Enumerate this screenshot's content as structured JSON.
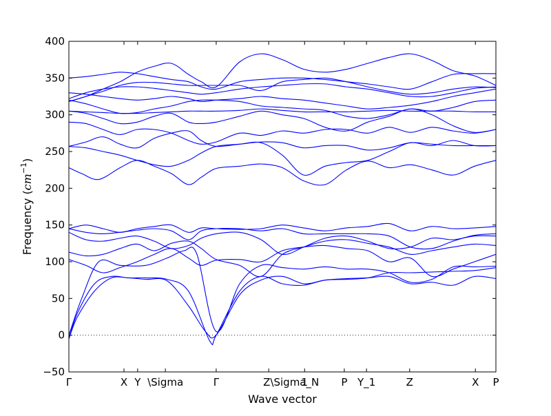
{
  "chart_data": {
    "type": "line",
    "title": "",
    "xlabel": "Wave vector",
    "ylabel_main": "Frequency (",
    "ylabel_unit": "cm",
    "ylabel_exp": "−1",
    "ylabel_close": ")",
    "ylim": [
      -50,
      400
    ],
    "xlim": [
      0,
      1
    ],
    "yticks": [
      -50,
      0,
      50,
      100,
      150,
      200,
      250,
      300,
      350,
      400
    ],
    "ytick_labels": [
      "−50",
      "0",
      "50",
      "100",
      "150",
      "200",
      "250",
      "300",
      "350",
      "400"
    ],
    "xticks": [
      {
        "label": "Γ",
        "pos": 0.0
      },
      {
        "label": "X",
        "pos": 0.129
      },
      {
        "label": "Y",
        "pos": 0.161
      },
      {
        "label": "\\Sigma",
        "pos": 0.226
      },
      {
        "label": "Γ",
        "pos": 0.345
      },
      {
        "label": "Z\\Sigma_N",
        "pos": 0.468
      },
      {
        "label": "1",
        "pos": 0.552
      },
      {
        "label": "P",
        "pos": 0.645
      },
      {
        "label": "Y_1",
        "pos": 0.697
      },
      {
        "label": "Z",
        "pos": 0.798
      },
      {
        "label": "X",
        "pos": 0.952
      },
      {
        "label": "P",
        "pos": 1.0
      }
    ],
    "zero_line": true,
    "line_color": "#0000ff",
    "series": [
      {
        "x": [
          0,
          0.02,
          0.06,
          0.1,
          0.14,
          0.18,
          0.23,
          0.28,
          0.32,
          0.345,
          0.4,
          0.45,
          0.5,
          0.55,
          0.6,
          0.65,
          0.7,
          0.75,
          0.8,
          0.85,
          0.9,
          0.95,
          1.0
        ],
        "y": [
          -5,
          25,
          60,
          78,
          78,
          76,
          74,
          40,
          5,
          0,
          55,
          75,
          80,
          70,
          75,
          77,
          78,
          80,
          70,
          72,
          68,
          80,
          77
        ]
      },
      {
        "x": [
          0,
          0.02,
          0.06,
          0.1,
          0.14,
          0.18,
          0.23,
          0.28,
          0.33,
          0.345,
          0.4,
          0.45,
          0.5,
          0.55,
          0.6,
          0.65,
          0.7,
          0.75,
          0.8,
          0.85,
          0.9,
          0.95,
          1.0
        ],
        "y": [
          -5,
          30,
          70,
          80,
          78,
          78,
          76,
          60,
          -8,
          0,
          60,
          80,
          70,
          68,
          75,
          76,
          78,
          85,
          85,
          86,
          87,
          88,
          92
        ]
      },
      {
        "x": [
          0,
          0.03,
          0.07,
          0.12,
          0.18,
          0.23,
          0.27,
          0.3,
          0.345,
          0.4,
          0.45,
          0.5,
          0.55,
          0.6,
          0.65,
          0.7,
          0.75,
          0.8,
          0.85,
          0.9,
          0.95,
          1.0
        ],
        "y": [
          0,
          50,
          100,
          95,
          95,
          105,
          115,
          110,
          5,
          70,
          95,
          92,
          90,
          93,
          90,
          90,
          85,
          72,
          76,
          93,
          93,
          94
        ]
      },
      {
        "x": [
          0,
          0.04,
          0.08,
          0.12,
          0.16,
          0.2,
          0.24,
          0.28,
          0.31,
          0.345,
          0.4,
          0.45,
          0.5,
          0.55,
          0.6,
          0.65,
          0.7,
          0.75,
          0.8,
          0.85,
          0.9,
          0.95,
          1.0
        ],
        "y": [
          103,
          95,
          85,
          92,
          100,
          110,
          118,
          105,
          95,
          102,
          103,
          100,
          115,
          120,
          122,
          118,
          115,
          100,
          105,
          80,
          90,
          100,
          110
        ]
      },
      {
        "x": [
          0,
          0.04,
          0.08,
          0.12,
          0.16,
          0.2,
          0.24,
          0.28,
          0.31,
          0.345,
          0.4,
          0.45,
          0.5,
          0.55,
          0.6,
          0.65,
          0.7,
          0.75,
          0.8,
          0.85,
          0.9,
          0.95,
          1.0
        ],
        "y": [
          113,
          108,
          110,
          118,
          124,
          115,
          125,
          128,
          118,
          103,
          95,
          80,
          110,
          120,
          128,
          130,
          125,
          120,
          110,
          115,
          120,
          124,
          122
        ]
      },
      {
        "x": [
          0,
          0.04,
          0.08,
          0.12,
          0.16,
          0.2,
          0.24,
          0.28,
          0.31,
          0.345,
          0.4,
          0.45,
          0.5,
          0.55,
          0.6,
          0.65,
          0.7,
          0.75,
          0.8,
          0.85,
          0.9,
          0.95,
          1.0
        ],
        "y": [
          140,
          130,
          128,
          132,
          135,
          128,
          118,
          122,
          132,
          138,
          140,
          130,
          110,
          120,
          132,
          135,
          128,
          118,
          120,
          132,
          130,
          135,
          135
        ]
      },
      {
        "x": [
          0,
          0.04,
          0.08,
          0.12,
          0.16,
          0.2,
          0.24,
          0.28,
          0.31,
          0.345,
          0.4,
          0.45,
          0.5,
          0.55,
          0.6,
          0.65,
          0.7,
          0.75,
          0.8,
          0.85,
          0.9,
          0.95,
          1.0
        ],
        "y": [
          145,
          140,
          138,
          140,
          143,
          145,
          142,
          130,
          142,
          145,
          145,
          142,
          145,
          138,
          138,
          138,
          138,
          135,
          120,
          118,
          128,
          136,
          138
        ]
      },
      {
        "x": [
          0,
          0.04,
          0.08,
          0.12,
          0.16,
          0.2,
          0.24,
          0.28,
          0.31,
          0.345,
          0.4,
          0.45,
          0.5,
          0.55,
          0.6,
          0.65,
          0.7,
          0.75,
          0.8,
          0.85,
          0.9,
          0.95,
          1.0
        ],
        "y": [
          145,
          150,
          145,
          140,
          145,
          148,
          150,
          140,
          146,
          145,
          144,
          145,
          150,
          146,
          142,
          146,
          148,
          152,
          142,
          148,
          145,
          146,
          148
        ]
      },
      {
        "x": [
          0,
          0.03,
          0.07,
          0.12,
          0.16,
          0.2,
          0.24,
          0.28,
          0.31,
          0.345,
          0.4,
          0.45,
          0.5,
          0.55,
          0.6,
          0.65,
          0.7,
          0.75,
          0.8,
          0.85,
          0.9,
          0.95,
          1.0
        ],
        "y": [
          228,
          220,
          212,
          228,
          238,
          230,
          220,
          205,
          215,
          227,
          230,
          233,
          228,
          210,
          205,
          225,
          237,
          228,
          232,
          225,
          218,
          230,
          238
        ]
      },
      {
        "x": [
          0,
          0.04,
          0.08,
          0.12,
          0.16,
          0.2,
          0.24,
          0.28,
          0.31,
          0.345,
          0.4,
          0.45,
          0.5,
          0.55,
          0.6,
          0.65,
          0.7,
          0.75,
          0.8,
          0.85,
          0.9,
          0.95,
          1.0
        ],
        "y": [
          257,
          255,
          250,
          245,
          238,
          232,
          230,
          238,
          248,
          257,
          260,
          262,
          245,
          218,
          230,
          235,
          238,
          250,
          262,
          258,
          265,
          258,
          258
        ]
      },
      {
        "x": [
          0,
          0.04,
          0.08,
          0.12,
          0.16,
          0.2,
          0.24,
          0.28,
          0.31,
          0.345,
          0.4,
          0.45,
          0.5,
          0.55,
          0.6,
          0.65,
          0.7,
          0.75,
          0.8,
          0.85,
          0.9,
          0.95,
          1.0
        ],
        "y": [
          257,
          263,
          270,
          260,
          255,
          268,
          275,
          278,
          265,
          257,
          260,
          263,
          262,
          255,
          258,
          258,
          252,
          255,
          262,
          260,
          258,
          258,
          258
        ]
      },
      {
        "x": [
          0,
          0.04,
          0.08,
          0.12,
          0.16,
          0.2,
          0.24,
          0.28,
          0.31,
          0.345,
          0.4,
          0.45,
          0.5,
          0.55,
          0.6,
          0.65,
          0.7,
          0.75,
          0.8,
          0.85,
          0.9,
          0.95,
          1.0
        ],
        "y": [
          290,
          288,
          280,
          273,
          280,
          280,
          275,
          265,
          260,
          263,
          275,
          272,
          278,
          275,
          280,
          280,
          275,
          283,
          276,
          283,
          278,
          275,
          280
        ]
      },
      {
        "x": [
          0,
          0.04,
          0.08,
          0.12,
          0.16,
          0.2,
          0.24,
          0.28,
          0.31,
          0.345,
          0.4,
          0.45,
          0.5,
          0.55,
          0.6,
          0.65,
          0.7,
          0.75,
          0.8,
          0.85,
          0.9,
          0.95,
          1.0
        ],
        "y": [
          305,
          302,
          295,
          288,
          290,
          298,
          302,
          290,
          288,
          290,
          298,
          305,
          300,
          295,
          283,
          278,
          290,
          298,
          308,
          300,
          285,
          276,
          280
        ]
      },
      {
        "x": [
          0,
          0.04,
          0.08,
          0.12,
          0.16,
          0.2,
          0.24,
          0.28,
          0.31,
          0.345,
          0.4,
          0.45,
          0.5,
          0.55,
          0.6,
          0.65,
          0.7,
          0.75,
          0.8,
          0.85,
          0.9,
          0.95,
          1.0
        ],
        "y": [
          305,
          304,
          303,
          302,
          302,
          303,
          304,
          305,
          305,
          305,
          306,
          308,
          306,
          304,
          304,
          304,
          305,
          306,
          305,
          305,
          305,
          304,
          304
        ]
      },
      {
        "x": [
          0,
          0.04,
          0.08,
          0.12,
          0.16,
          0.2,
          0.24,
          0.28,
          0.31,
          0.345,
          0.4,
          0.45,
          0.5,
          0.55,
          0.6,
          0.65,
          0.7,
          0.75,
          0.8,
          0.85,
          0.9,
          0.95,
          1.0
        ],
        "y": [
          320,
          315,
          308,
          302,
          303,
          308,
          312,
          318,
          320,
          320,
          318,
          312,
          310,
          308,
          306,
          298,
          295,
          300,
          308,
          305,
          310,
          318,
          320
        ]
      },
      {
        "x": [
          0,
          0.04,
          0.08,
          0.12,
          0.16,
          0.2,
          0.24,
          0.28,
          0.31,
          0.345,
          0.4,
          0.45,
          0.5,
          0.55,
          0.6,
          0.65,
          0.7,
          0.75,
          0.8,
          0.85,
          0.9,
          0.95,
          1.0
        ],
        "y": [
          330,
          328,
          325,
          322,
          320,
          322,
          325,
          322,
          318,
          320,
          322,
          325,
          322,
          320,
          316,
          312,
          308,
          310,
          313,
          318,
          325,
          330,
          335
        ]
      },
      {
        "x": [
          0,
          0.04,
          0.08,
          0.12,
          0.16,
          0.2,
          0.24,
          0.28,
          0.31,
          0.345,
          0.4,
          0.45,
          0.5,
          0.55,
          0.6,
          0.65,
          0.7,
          0.75,
          0.8,
          0.85,
          0.9,
          0.95,
          1.0
        ],
        "y": [
          322,
          330,
          335,
          338,
          338,
          336,
          333,
          330,
          328,
          330,
          335,
          338,
          340,
          342,
          342,
          338,
          335,
          330,
          325,
          325,
          330,
          336,
          338
        ]
      },
      {
        "x": [
          0,
          0.04,
          0.08,
          0.12,
          0.16,
          0.2,
          0.24,
          0.28,
          0.31,
          0.345,
          0.4,
          0.45,
          0.5,
          0.55,
          0.6,
          0.65,
          0.7,
          0.75,
          0.8,
          0.85,
          0.9,
          0.95,
          1.0
        ],
        "y": [
          318,
          325,
          332,
          340,
          344,
          344,
          342,
          340,
          340,
          340,
          340,
          333,
          345,
          348,
          350,
          345,
          338,
          332,
          328,
          330,
          335,
          338,
          337
        ]
      },
      {
        "x": [
          0,
          0.04,
          0.08,
          0.12,
          0.16,
          0.2,
          0.24,
          0.28,
          0.31,
          0.345,
          0.4,
          0.45,
          0.5,
          0.55,
          0.6,
          0.65,
          0.7,
          0.75,
          0.8,
          0.85,
          0.9,
          0.95,
          1.0
        ],
        "y": [
          350,
          352,
          355,
          358,
          356,
          352,
          348,
          345,
          338,
          335,
          345,
          348,
          350,
          350,
          348,
          345,
          342,
          338,
          335,
          345,
          355,
          356,
          356
        ]
      },
      {
        "x": [
          0,
          0.04,
          0.08,
          0.12,
          0.16,
          0.2,
          0.24,
          0.28,
          0.31,
          0.345,
          0.4,
          0.45,
          0.5,
          0.55,
          0.6,
          0.65,
          0.7,
          0.75,
          0.8,
          0.85,
          0.9,
          0.95,
          1.0
        ],
        "y": [
          318,
          325,
          335,
          345,
          358,
          366,
          370,
          355,
          345,
          338,
          372,
          383,
          375,
          362,
          358,
          362,
          370,
          378,
          383,
          374,
          360,
          353,
          340
        ]
      }
    ]
  }
}
